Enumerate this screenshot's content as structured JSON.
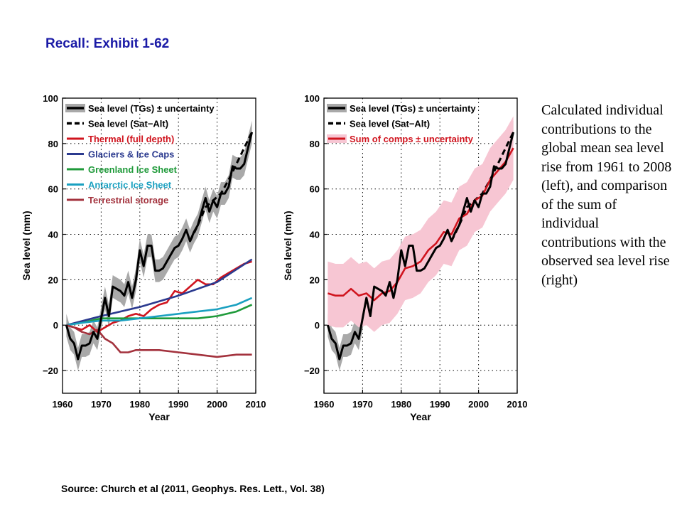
{
  "slide": {
    "title": "Recall: Exhibit 1-62",
    "caption": "Calculated individual contributions to the global mean sea level rise from 1961 to 2008 (left), and comparison of the sum of individual contributions with the observed sea level rise (right)",
    "source": "Source: Church et al (2011, Geophys. Res. Lett., Vol. 38)"
  },
  "colors": {
    "title": "#1a1aa6",
    "tg": "#000000",
    "tg_band": "#a9a9a9",
    "satalt": "#000000",
    "thermal": "#d0141e",
    "glaciers": "#2b3a8f",
    "greenland": "#1f9a3a",
    "antarctic": "#1aa0c0",
    "terrestrial": "#a3323d",
    "sum": "#d0141e",
    "sum_band": "#f7c6d3"
  },
  "chart_data": [
    {
      "type": "line",
      "xlabel": "Year",
      "ylabel": "Sea level (mm)",
      "xlim": [
        1960,
        2010
      ],
      "ylim": [
        -30,
        100
      ],
      "xticks": [
        1960,
        1970,
        1980,
        1990,
        2000,
        2010
      ],
      "yticks": [
        -20,
        0,
        20,
        40,
        60,
        80,
        100
      ],
      "grid": true,
      "legend": "top-left",
      "series": [
        {
          "name": "Sea level (TGs) ± uncertainty",
          "key": "tg",
          "band": 5,
          "x": [
            1961,
            1962,
            1963,
            1964,
            1965,
            1966,
            1967,
            1968,
            1969,
            1970,
            1971,
            1972,
            1973,
            1974,
            1975,
            1976,
            1977,
            1978,
            1979,
            1980,
            1981,
            1982,
            1983,
            1984,
            1985,
            1986,
            1987,
            1988,
            1989,
            1990,
            1991,
            1992,
            1993,
            1994,
            1995,
            1996,
            1997,
            1998,
            1999,
            2000,
            2001,
            2002,
            2003,
            2004,
            2005,
            2006,
            2007,
            2008,
            2009
          ],
          "values": [
            0,
            -6,
            -8,
            -15,
            -9,
            -9,
            -8,
            -3,
            -6,
            3,
            12,
            4,
            17,
            16,
            15,
            13,
            19,
            12,
            20,
            33,
            26,
            35,
            35,
            24,
            24,
            25,
            28,
            31,
            34,
            35,
            38,
            42,
            37,
            41,
            44,
            50,
            56,
            50,
            55,
            52,
            58,
            58,
            61,
            70,
            69,
            69,
            71,
            78,
            85
          ]
        },
        {
          "name": "Sea level (Sat−Alt)",
          "key": "satalt",
          "dashed": true,
          "x": [
            1993,
            1995,
            1997,
            1999,
            2001,
            2003,
            2005,
            2007,
            2009
          ],
          "values": [
            37,
            44,
            52,
            55,
            58,
            64,
            71,
            78,
            85
          ]
        },
        {
          "name": "Thermal (full depth)",
          "key": "thermal",
          "x": [
            1961,
            1963,
            1965,
            1967,
            1969,
            1971,
            1973,
            1975,
            1977,
            1979,
            1981,
            1983,
            1985,
            1987,
            1989,
            1991,
            1993,
            1995,
            1997,
            1999,
            2001,
            2003,
            2005,
            2007,
            2009
          ],
          "values": [
            0,
            -1,
            -2,
            0,
            -3,
            -1,
            1,
            2,
            4,
            5,
            4,
            7,
            9,
            10,
            15,
            14,
            17,
            20,
            18,
            18,
            21,
            23,
            25,
            27,
            28
          ]
        },
        {
          "name": "Glaciers & Ice Caps",
          "key": "glaciers",
          "x": [
            1961,
            1970,
            1980,
            1990,
            2000,
            2009
          ],
          "values": [
            0,
            4,
            8,
            13,
            19,
            29
          ]
        },
        {
          "name": "Greenland Ice Sheet",
          "key": "greenland",
          "x": [
            1961,
            1965,
            1970,
            1975,
            1980,
            1985,
            1990,
            1995,
            2000,
            2005,
            2009
          ],
          "values": [
            0,
            1,
            3,
            3,
            3,
            3,
            3,
            3,
            4,
            6,
            9
          ]
        },
        {
          "name": "Antarctic Ice Sheet",
          "key": "antarctic",
          "x": [
            1961,
            1965,
            1970,
            1975,
            1980,
            1985,
            1990,
            1995,
            2000,
            2005,
            2009
          ],
          "values": [
            0,
            1,
            2,
            2,
            3,
            4,
            5,
            6,
            7,
            9,
            12
          ]
        },
        {
          "name": "Terrestrial storage",
          "key": "terrestrial",
          "x": [
            1961,
            1963,
            1965,
            1967,
            1969,
            1971,
            1973,
            1975,
            1977,
            1979,
            1981,
            1985,
            1990,
            1995,
            2000,
            2005,
            2009
          ],
          "values": [
            0,
            -1,
            -3,
            -4,
            -2,
            -6,
            -8,
            -12,
            -12,
            -11,
            -11,
            -11,
            -12,
            -13,
            -14,
            -13,
            -13
          ]
        }
      ]
    },
    {
      "type": "line",
      "xlabel": "Year",
      "ylabel": "Sea level (mm)",
      "xlim": [
        1960,
        2010
      ],
      "ylim": [
        -30,
        100
      ],
      "xticks": [
        1960,
        1970,
        1980,
        1990,
        2000,
        2010
      ],
      "yticks": [
        -20,
        0,
        20,
        40,
        60,
        80,
        100
      ],
      "grid": true,
      "legend": "top-left",
      "series": [
        {
          "name": "Sea level (TGs) ± uncertainty",
          "key": "tg",
          "band": 5,
          "x": [
            1961,
            1962,
            1963,
            1964,
            1965,
            1966,
            1967,
            1968,
            1969,
            1970,
            1971,
            1972,
            1973,
            1974,
            1975,
            1976,
            1977,
            1978,
            1979,
            1980,
            1981,
            1982,
            1983,
            1984,
            1985,
            1986,
            1987,
            1988,
            1989,
            1990,
            1991,
            1992,
            1993,
            1994,
            1995,
            1996,
            1997,
            1998,
            1999,
            2000,
            2001,
            2002,
            2003,
            2004,
            2005,
            2006,
            2007,
            2008,
            2009
          ],
          "values": [
            0,
            -6,
            -8,
            -15,
            -9,
            -9,
            -8,
            -3,
            -6,
            3,
            12,
            4,
            17,
            16,
            15,
            13,
            19,
            12,
            20,
            33,
            26,
            35,
            35,
            24,
            24,
            25,
            28,
            31,
            34,
            35,
            38,
            42,
            37,
            41,
            44,
            50,
            56,
            50,
            55,
            52,
            58,
            58,
            61,
            70,
            69,
            69,
            71,
            78,
            85
          ]
        },
        {
          "name": "Sea level (Sat−Alt)",
          "key": "satalt",
          "dashed": true,
          "x": [
            1993,
            1995,
            1997,
            1999,
            2001,
            2003,
            2005,
            2007,
            2009
          ],
          "values": [
            37,
            44,
            52,
            55,
            58,
            64,
            71,
            78,
            85
          ]
        },
        {
          "name": "Sum of comps ± uncertainty",
          "key": "sum",
          "band": 14,
          "x": [
            1961,
            1963,
            1965,
            1967,
            1969,
            1971,
            1973,
            1975,
            1977,
            1979,
            1981,
            1983,
            1985,
            1987,
            1989,
            1991,
            1993,
            1995,
            1997,
            1999,
            2001,
            2003,
            2005,
            2007,
            2009
          ],
          "values": [
            14,
            13,
            13,
            16,
            13,
            14,
            11,
            14,
            15,
            19,
            25,
            26,
            28,
            33,
            36,
            41,
            40,
            47,
            49,
            55,
            57,
            64,
            68,
            72,
            78
          ]
        }
      ]
    }
  ]
}
